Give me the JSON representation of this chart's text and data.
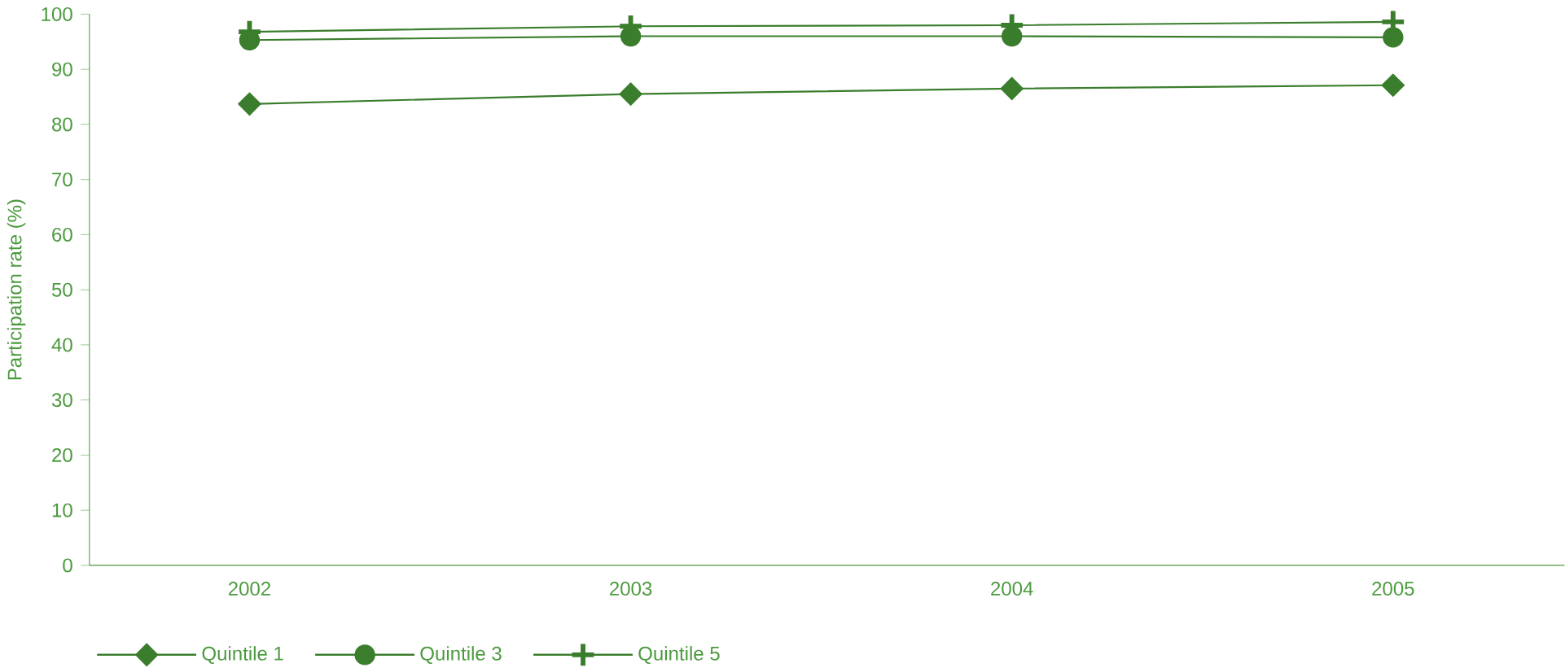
{
  "chart_data": {
    "type": "line",
    "ylabel": "Participation rate (%)",
    "categories": [
      "2002",
      "2003",
      "2004",
      "2005"
    ],
    "series": [
      {
        "name": "Quintile 1",
        "color": "#3a7d2c",
        "marker": "diamond",
        "values": [
          83.7,
          85.5,
          86.5,
          87.1
        ]
      },
      {
        "name": "Quintile 3",
        "color": "#3a7d2c",
        "marker": "circle",
        "values": [
          95.3,
          96.0,
          96.0,
          95.8
        ]
      },
      {
        "name": "Quintile 5",
        "color": "#3a7d2c",
        "marker": "cross",
        "values": [
          96.8,
          97.8,
          98.0,
          98.6
        ]
      }
    ],
    "ylim": [
      0,
      100
    ],
    "yticks": [
      0,
      10,
      20,
      30,
      40,
      50,
      60,
      70,
      80,
      90,
      100
    ],
    "grid": false,
    "legend": "bottom",
    "line_style": "solid"
  }
}
